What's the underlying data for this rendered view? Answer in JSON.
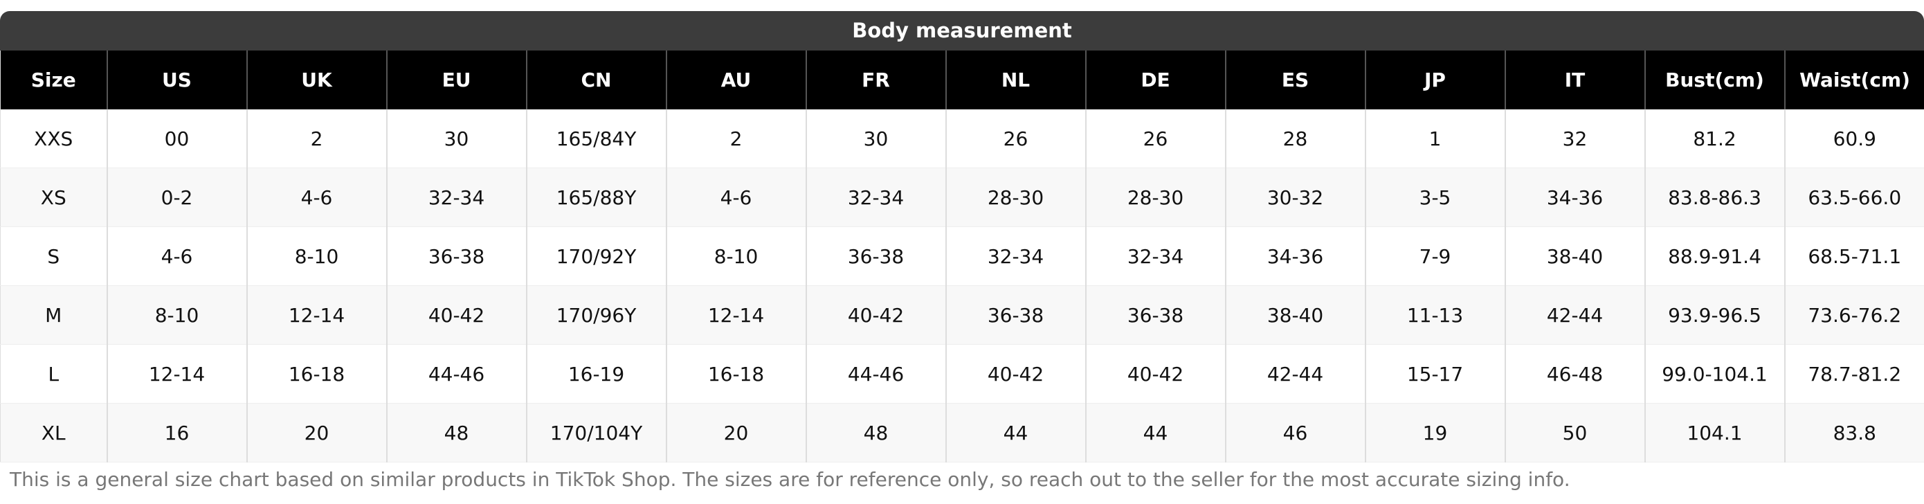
{
  "title": "Body measurement",
  "table": {
    "columns": [
      "Size",
      "US",
      "UK",
      "EU",
      "CN",
      "AU",
      "FR",
      "NL",
      "DE",
      "ES",
      "JP",
      "IT",
      "Bust(cm)",
      "Waist(cm)"
    ],
    "rows": [
      [
        "XXS",
        "00",
        "2",
        "30",
        "165/84Y",
        "2",
        "30",
        "26",
        "26",
        "28",
        "1",
        "32",
        "81.2",
        "60.9"
      ],
      [
        "XS",
        "0-2",
        "4-6",
        "32-34",
        "165/88Y",
        "4-6",
        "32-34",
        "28-30",
        "28-30",
        "30-32",
        "3-5",
        "34-36",
        "83.8-86.3",
        "63.5-66.0"
      ],
      [
        "S",
        "4-6",
        "8-10",
        "36-38",
        "170/92Y",
        "8-10",
        "36-38",
        "32-34",
        "32-34",
        "34-36",
        "7-9",
        "38-40",
        "88.9-91.4",
        "68.5-71.1"
      ],
      [
        "M",
        "8-10",
        "12-14",
        "40-42",
        "170/96Y",
        "12-14",
        "40-42",
        "36-38",
        "36-38",
        "38-40",
        "11-13",
        "42-44",
        "93.9-96.5",
        "73.6-76.2"
      ],
      [
        "L",
        "12-14",
        "16-18",
        "44-46",
        "16-19",
        "16-18",
        "44-46",
        "40-42",
        "40-42",
        "42-44",
        "15-17",
        "46-48",
        "99.0-104.1",
        "78.7-81.2"
      ],
      [
        "XL",
        "16",
        "20",
        "48",
        "170/104Y",
        "20",
        "48",
        "44",
        "44",
        "46",
        "19",
        "50",
        "104.1",
        "83.8"
      ]
    ]
  },
  "footnote": "This is a general size chart based on similar products in TikTok Shop. The sizes are for reference only, so reach out to the seller for the most accurate sizing info."
}
